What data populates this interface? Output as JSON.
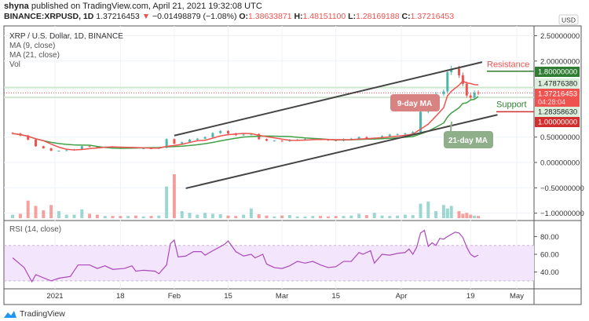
{
  "header": {
    "author": "shyna",
    "published": "published on TradingView.com, April 21, 2021 19:32:08 UTC",
    "symbol": "BINANCE:XRPUSD, 1D",
    "last": "1.37216453",
    "change": "−0.01498879 (−1.08%)",
    "change_icon": "triangle-down-icon",
    "open_label": "O:",
    "open": "1.38633871",
    "high_label": "H:",
    "high": "1.48151100",
    "low_label": "L:",
    "low": "1.28169188",
    "close_label": "C:",
    "close": "1.37216453"
  },
  "legend": {
    "title": "XRP / U.S. Dollar, 1D, BINANCE",
    "ma9": "MA (9, close)",
    "ma21": "MA (21, close)",
    "vol": "Vol",
    "rsi": "RSI (14, close)"
  },
  "colors": {
    "up": "#4db6ac",
    "down": "#ef5350",
    "ma9": "#ef5350",
    "ma21": "#43a047",
    "rsi": "#ab47bc",
    "resistance": "#2e7d32",
    "support": "#d32f2f"
  },
  "chart_data": [
    {
      "type": "candlestick",
      "currency": "USD",
      "y_ticks": [
        "2.50000000",
        "2.00000000",
        "0.50000000",
        "0.00000000",
        "−0.50000000",
        "−1.00000000"
      ],
      "y_tick_values": [
        2.5,
        2.0,
        0.5,
        0.0,
        -0.5,
        -1.0
      ],
      "x_ticks": [
        "2021",
        "18",
        "Feb",
        "15",
        "Mar",
        "15",
        "Apr",
        "19",
        "May"
      ],
      "x_tick_dates": [
        "2021-01-01",
        "2021-01-18",
        "2021-02-01",
        "2021-02-15",
        "2021-03-01",
        "2021-03-15",
        "2021-04-01",
        "2021-04-19",
        "2021-05-01"
      ],
      "grid": true,
      "series": [
        {
          "date": "2020-12-21",
          "close": 0.57,
          "volume": 8
        },
        {
          "date": "2020-12-23",
          "close": 0.53,
          "volume": 10
        },
        {
          "date": "2020-12-25",
          "close": 0.45,
          "volume": 40
        },
        {
          "date": "2020-12-27",
          "close": 0.32,
          "volume": 28
        },
        {
          "date": "2020-12-29",
          "close": 0.28,
          "volume": 18
        },
        {
          "date": "2020-12-31",
          "close": 0.23,
          "volume": 30
        },
        {
          "date": "2021-01-02",
          "close": 0.23,
          "volume": 16
        },
        {
          "date": "2021-01-04",
          "close": 0.24,
          "volume": 8
        },
        {
          "date": "2021-01-06",
          "close": 0.26,
          "volume": 8
        },
        {
          "date": "2021-01-08",
          "close": 0.32,
          "volume": 20
        },
        {
          "date": "2021-01-10",
          "close": 0.31,
          "volume": 10
        },
        {
          "date": "2021-01-12",
          "close": 0.3,
          "volume": 8
        },
        {
          "date": "2021-01-14",
          "close": 0.31,
          "volume": 5
        },
        {
          "date": "2021-01-16",
          "close": 0.3,
          "volume": 5
        },
        {
          "date": "2021-01-18",
          "close": 0.29,
          "volume": 5
        },
        {
          "date": "2021-01-20",
          "close": 0.29,
          "volume": 5
        },
        {
          "date": "2021-01-22",
          "close": 0.28,
          "volume": 6
        },
        {
          "date": "2021-01-24",
          "close": 0.28,
          "volume": 4
        },
        {
          "date": "2021-01-26",
          "close": 0.27,
          "volume": 5
        },
        {
          "date": "2021-01-28",
          "close": 0.29,
          "volume": 6
        },
        {
          "date": "2021-01-30",
          "close": 0.46,
          "volume": 72
        },
        {
          "date": "2021-02-01",
          "close": 0.37,
          "volume": 100
        },
        {
          "date": "2021-02-03",
          "close": 0.4,
          "volume": 16
        },
        {
          "date": "2021-02-05",
          "close": 0.45,
          "volume": 12
        },
        {
          "date": "2021-02-07",
          "close": 0.47,
          "volume": 8
        },
        {
          "date": "2021-02-09",
          "close": 0.5,
          "volume": 12
        },
        {
          "date": "2021-02-11",
          "close": 0.58,
          "volume": 10
        },
        {
          "date": "2021-02-13",
          "close": 0.62,
          "volume": 9
        },
        {
          "date": "2021-02-15",
          "close": 0.57,
          "volume": 6
        },
        {
          "date": "2021-02-17",
          "close": 0.54,
          "volume": 5
        },
        {
          "date": "2021-02-19",
          "close": 0.55,
          "volume": 8
        },
        {
          "date": "2021-02-21",
          "close": 0.56,
          "volume": 22
        },
        {
          "date": "2021-02-23",
          "close": 0.46,
          "volume": 9
        },
        {
          "date": "2021-02-25",
          "close": 0.43,
          "volume": 6
        },
        {
          "date": "2021-02-27",
          "close": 0.43,
          "volume": 4
        },
        {
          "date": "2021-03-01",
          "close": 0.42,
          "volume": 6
        },
        {
          "date": "2021-03-03",
          "close": 0.45,
          "volume": 7
        },
        {
          "date": "2021-03-05",
          "close": 0.45,
          "volume": 4
        },
        {
          "date": "2021-03-07",
          "close": 0.46,
          "volume": 4
        },
        {
          "date": "2021-03-09",
          "close": 0.46,
          "volume": 5
        },
        {
          "date": "2021-03-11",
          "close": 0.45,
          "volume": 5
        },
        {
          "date": "2021-03-13",
          "close": 0.44,
          "volume": 4
        },
        {
          "date": "2021-03-15",
          "close": 0.43,
          "volume": 5
        },
        {
          "date": "2021-03-17",
          "close": 0.46,
          "volume": 5
        },
        {
          "date": "2021-03-19",
          "close": 0.47,
          "volume": 6
        },
        {
          "date": "2021-03-21",
          "close": 0.5,
          "volume": 10
        },
        {
          "date": "2021-03-23",
          "close": 0.48,
          "volume": 7
        },
        {
          "date": "2021-03-25",
          "close": 0.48,
          "volume": 12
        },
        {
          "date": "2021-03-27",
          "close": 0.52,
          "volume": 6
        },
        {
          "date": "2021-03-29",
          "close": 0.55,
          "volume": 5
        },
        {
          "date": "2021-03-31",
          "close": 0.56,
          "volume": 6
        },
        {
          "date": "2021-04-02",
          "close": 0.57,
          "volume": 8
        },
        {
          "date": "2021-04-04",
          "close": 0.6,
          "volume": 7
        },
        {
          "date": "2021-04-06",
          "close": 1.0,
          "volume": 33
        },
        {
          "date": "2021-04-08",
          "close": 1.05,
          "volume": 38
        },
        {
          "date": "2021-04-10",
          "close": 1.35,
          "volume": 16
        },
        {
          "date": "2021-04-12",
          "close": 1.4,
          "volume": 30
        },
        {
          "date": "2021-04-13",
          "close": 1.78,
          "volume": 22
        },
        {
          "date": "2021-04-14",
          "close": 1.85,
          "volume": 28
        },
        {
          "date": "2021-04-16",
          "close": 1.72,
          "volume": 16
        },
        {
          "date": "2021-04-17",
          "close": 1.55,
          "volume": 10
        },
        {
          "date": "2021-04-18",
          "close": 1.32,
          "volume": 12
        },
        {
          "date": "2021-04-19",
          "close": 1.28,
          "volume": 8
        },
        {
          "date": "2021-04-20",
          "close": 1.38,
          "volume": 6
        },
        {
          "date": "2021-04-21",
          "close": 1.37,
          "volume": 5
        }
      ],
      "trendlines": [
        {
          "from": {
            "date": "2021-02-01",
            "price": 0.53
          },
          "to": {
            "date": "2021-04-22",
            "price": 1.98
          }
        },
        {
          "from": {
            "date": "2021-02-04",
            "price": -0.51
          },
          "to": {
            "date": "2021-04-26",
            "price": 0.94
          }
        }
      ],
      "levels": {
        "resistance": {
          "label": "Resistance",
          "price": 1.8,
          "badge": "1.80000000"
        },
        "support": {
          "label": "Support",
          "price": 1.0,
          "badge": "1.00000000"
        },
        "upper_band": {
          "price": 1.4787638,
          "badge": "1.47876380"
        },
        "lower_band": {
          "price": 1.2835863,
          "badge": "1.28358630"
        },
        "last": {
          "price": 1.37216453,
          "badge": "1.37216453",
          "countdown": "04:28:04"
        }
      },
      "annotations": {
        "ma9": "9-day MA",
        "ma21": "21-day MA"
      }
    },
    {
      "type": "line",
      "title": "RSI (14, close)",
      "y_ticks": [
        "80.00",
        "60.00",
        "40.00"
      ],
      "y_tick_values": [
        80,
        60,
        40
      ],
      "band": [
        30,
        70
      ],
      "series": [
        [
          "2020-12-21",
          56
        ],
        [
          "2020-12-24",
          45
        ],
        [
          "2020-12-26",
          29
        ],
        [
          "2020-12-27",
          37
        ],
        [
          "2020-12-31",
          30
        ],
        [
          "2021-01-02",
          33
        ],
        [
          "2021-01-05",
          35
        ],
        [
          "2021-01-07",
          48
        ],
        [
          "2021-01-10",
          48
        ],
        [
          "2021-01-12",
          44
        ],
        [
          "2021-01-14",
          47
        ],
        [
          "2021-01-16",
          43
        ],
        [
          "2021-01-19",
          44
        ],
        [
          "2021-01-21",
          47
        ],
        [
          "2021-01-22",
          41
        ],
        [
          "2021-01-24",
          42
        ],
        [
          "2021-01-27",
          41
        ],
        [
          "2021-01-28",
          38
        ],
        [
          "2021-01-30",
          48
        ],
        [
          "2021-01-31",
          72
        ],
        [
          "2021-02-01",
          76
        ],
        [
          "2021-02-02",
          57
        ],
        [
          "2021-02-04",
          58
        ],
        [
          "2021-02-06",
          63
        ],
        [
          "2021-02-08",
          63
        ],
        [
          "2021-02-09",
          59
        ],
        [
          "2021-02-11",
          64
        ],
        [
          "2021-02-14",
          71
        ],
        [
          "2021-02-15",
          75
        ],
        [
          "2021-02-17",
          63
        ],
        [
          "2021-02-19",
          58
        ],
        [
          "2021-02-21",
          60
        ],
        [
          "2021-02-22",
          56
        ],
        [
          "2021-02-24",
          60
        ],
        [
          "2021-02-25",
          49
        ],
        [
          "2021-02-27",
          45
        ],
        [
          "2021-03-01",
          44
        ],
        [
          "2021-03-03",
          47
        ],
        [
          "2021-03-05",
          52
        ],
        [
          "2021-03-07",
          50
        ],
        [
          "2021-03-09",
          52
        ],
        [
          "2021-03-11",
          48
        ],
        [
          "2021-03-13",
          45
        ],
        [
          "2021-03-15",
          46
        ],
        [
          "2021-03-17",
          52
        ],
        [
          "2021-03-19",
          52
        ],
        [
          "2021-03-21",
          62
        ],
        [
          "2021-03-22",
          60
        ],
        [
          "2021-03-24",
          64
        ],
        [
          "2021-03-25",
          50
        ],
        [
          "2021-03-27",
          60
        ],
        [
          "2021-03-29",
          59
        ],
        [
          "2021-03-31",
          61
        ],
        [
          "2021-04-02",
          62
        ],
        [
          "2021-04-03",
          66
        ],
        [
          "2021-04-04",
          60
        ],
        [
          "2021-04-05",
          68
        ],
        [
          "2021-04-06",
          84
        ],
        [
          "2021-04-07",
          87
        ],
        [
          "2021-04-08",
          69
        ],
        [
          "2021-04-09",
          73
        ],
        [
          "2021-04-10",
          70
        ],
        [
          "2021-04-11",
          78
        ],
        [
          "2021-04-12",
          77
        ],
        [
          "2021-04-13",
          80
        ],
        [
          "2021-04-15",
          85
        ],
        [
          "2021-04-16",
          84
        ],
        [
          "2021-04-17",
          79
        ],
        [
          "2021-04-18",
          68
        ],
        [
          "2021-04-19",
          60
        ],
        [
          "2021-04-20",
          57
        ],
        [
          "2021-04-21",
          59
        ]
      ]
    }
  ],
  "footer": {
    "brand": "TradingView"
  }
}
